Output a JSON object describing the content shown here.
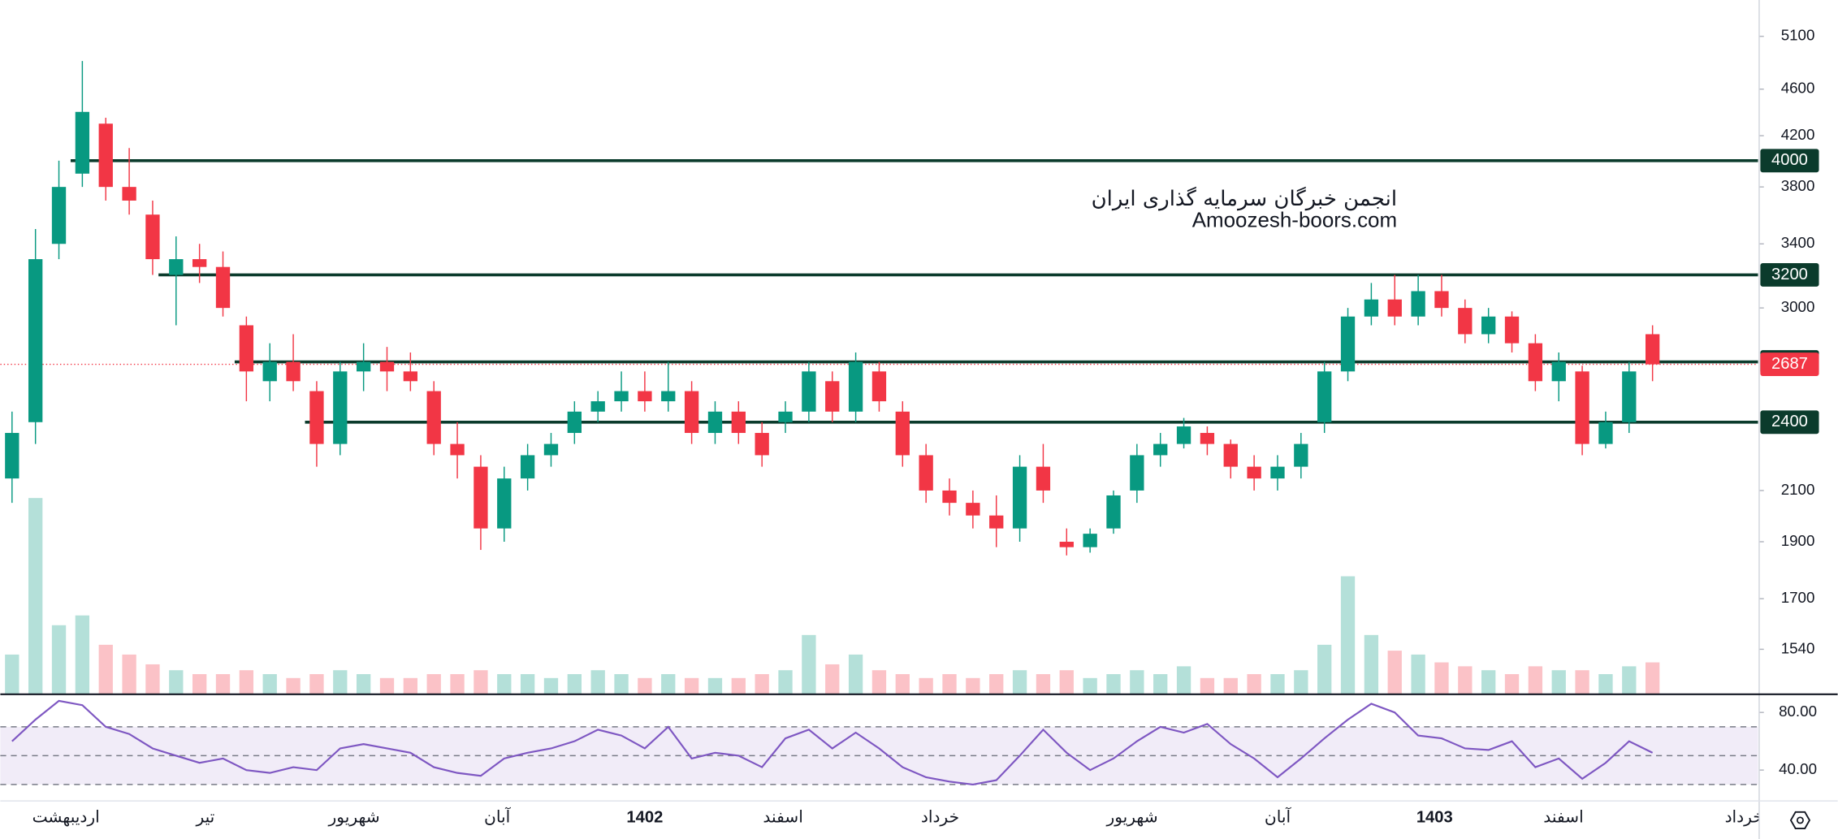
{
  "chart_data": {
    "type": "candlestick",
    "log": true,
    "ylim": [
      1412,
      5475
    ],
    "yticks": [
      5100,
      4600,
      4200,
      3800,
      3400,
      3000,
      2100,
      1900,
      1700,
      1540
    ],
    "xlim": [
      -0.5,
      74.5
    ],
    "xticks": [
      {
        "value": 2.3,
        "label": "اردیبهشت"
      },
      {
        "value": 8.25,
        "label": "تیر"
      },
      {
        "value": 14.6,
        "label": "شهریور"
      },
      {
        "value": 20.7,
        "label": "آبان"
      },
      {
        "value": 27,
        "label": "1402"
      },
      {
        "value": 32.9,
        "label": "اسفند"
      },
      {
        "value": 39.6,
        "label": "خرداد"
      },
      {
        "value": 47.8,
        "label": "شهریور"
      },
      {
        "value": 54,
        "label": "آبان"
      },
      {
        "value": 60.7,
        "label": "1403"
      },
      {
        "value": 66.2,
        "label": "اسفند"
      },
      {
        "value": 73.9,
        "label": "خرداد"
      }
    ],
    "up_color": "#089981",
    "down_color": "#f23645",
    "level_color": "#0b3b2c",
    "levels": [
      4000,
      3200,
      2700,
      2400
    ],
    "watermark": [
      "انجمن خبرگان سرمایه گذاری ایران",
      "Amoozesh-boors.com"
    ],
    "open": [
      2150,
      2400,
      3400,
      3900,
      4300,
      3800,
      3600,
      3200,
      3300,
      3250,
      2900,
      2600,
      2700,
      2550,
      2300,
      2650,
      2700,
      2650,
      2550,
      2300,
      2200,
      1950,
      2150,
      2250,
      2350,
      2450,
      2500,
      2550,
      2500,
      2550,
      2350,
      2450,
      2350,
      2400,
      2450,
      2600,
      2450,
      2650,
      2450,
      2250,
      2100,
      2050,
      2000,
      1950,
      2200,
      1900,
      1880,
      1950,
      2100,
      2250,
      2300,
      2350,
      2300,
      2200,
      2150,
      2200,
      2400,
      2650,
      2950,
      3050,
      2950,
      3100,
      3000,
      2850,
      2950,
      2800,
      2600,
      2650,
      2300,
      2400,
      2850
    ],
    "high": [
      2450,
      3500,
      4000,
      4860,
      4350,
      4100,
      3700,
      3450,
      3400,
      3350,
      2950,
      2800,
      2850,
      2600,
      2700,
      2800,
      2780,
      2750,
      2600,
      2400,
      2250,
      2200,
      2300,
      2350,
      2500,
      2550,
      2650,
      2650,
      2700,
      2600,
      2500,
      2500,
      2400,
      2500,
      2700,
      2650,
      2750,
      2700,
      2500,
      2300,
      2150,
      2100,
      2080,
      2250,
      2300,
      1950,
      1950,
      2100,
      2300,
      2350,
      2420,
      2380,
      2320,
      2250,
      2250,
      2350,
      2700,
      3000,
      3150,
      3200,
      3200,
      3200,
      3050,
      3000,
      2980,
      2850,
      2750,
      2680,
      2450,
      2700,
      2900
    ],
    "low": [
      2050,
      2300,
      3300,
      3800,
      3700,
      3600,
      3200,
      2900,
      3150,
      2950,
      2500,
      2500,
      2550,
      2200,
      2250,
      2550,
      2550,
      2550,
      2250,
      2150,
      1870,
      1900,
      2100,
      2200,
      2300,
      2400,
      2450,
      2450,
      2450,
      2300,
      2300,
      2300,
      2200,
      2350,
      2400,
      2400,
      2400,
      2450,
      2200,
      2050,
      2000,
      1950,
      1880,
      1900,
      2050,
      1850,
      1860,
      1930,
      2050,
      2200,
      2280,
      2250,
      2150,
      2100,
      2100,
      2150,
      2350,
      2600,
      2900,
      2900,
      2900,
      2950,
      2800,
      2800,
      2750,
      2550,
      2500,
      2250,
      2280,
      2350,
      2600
    ],
    "close": [
      2350,
      3300,
      3800,
      4400,
      3800,
      3700,
      3300,
      3300,
      3250,
      3000,
      2650,
      2700,
      2600,
      2300,
      2650,
      2700,
      2650,
      2600,
      2300,
      2250,
      1950,
      2150,
      2250,
      2300,
      2450,
      2500,
      2550,
      2500,
      2550,
      2350,
      2450,
      2350,
      2250,
      2450,
      2650,
      2450,
      2700,
      2500,
      2250,
      2100,
      2050,
      2000,
      1950,
      2200,
      2100,
      1880,
      1930,
      2080,
      2250,
      2300,
      2380,
      2300,
      2200,
      2150,
      2200,
      2300,
      2650,
      2950,
      3050,
      2950,
      3100,
      3000,
      2850,
      2950,
      2800,
      2600,
      2700,
      2300,
      2400,
      2650,
      2687
    ],
    "volume": [
      20,
      100,
      35,
      40,
      25,
      20,
      15,
      12,
      10,
      10,
      12,
      10,
      8,
      10,
      12,
      10,
      8,
      8,
      10,
      10,
      12,
      10,
      10,
      8,
      10,
      12,
      10,
      8,
      10,
      8,
      8,
      8,
      10,
      12,
      30,
      15,
      20,
      12,
      10,
      8,
      10,
      8,
      10,
      12,
      10,
      12,
      8,
      10,
      12,
      10,
      14,
      8,
      8,
      10,
      10,
      12,
      25,
      60,
      30,
      22,
      20,
      16,
      14,
      12,
      10,
      14,
      12,
      12,
      10,
      14,
      16
    ],
    "rsi": {
      "type": "line",
      "color": "#7e57c2",
      "band_color": "#ede7f6",
      "ylim": [
        19,
        93
      ],
      "yticks": [
        {
          "value": 80,
          "label": "80.00"
        },
        {
          "value": 40,
          "label": "40.00"
        }
      ],
      "band_lines": [
        70,
        50,
        30
      ],
      "values": [
        60,
        75,
        88,
        85,
        70,
        65,
        55,
        50,
        45,
        48,
        40,
        38,
        42,
        40,
        55,
        58,
        55,
        52,
        42,
        38,
        36,
        48,
        52,
        55,
        60,
        68,
        64,
        55,
        70,
        48,
        52,
        50,
        42,
        62,
        68,
        55,
        66,
        55,
        42,
        35,
        32,
        30,
        33,
        50,
        68,
        52,
        40,
        48,
        60,
        70,
        66,
        72,
        58,
        48,
        35,
        48,
        62,
        75,
        86,
        80,
        64,
        62,
        55,
        54,
        60,
        42,
        48,
        34,
        45,
        60,
        52
      ]
    }
  }
}
